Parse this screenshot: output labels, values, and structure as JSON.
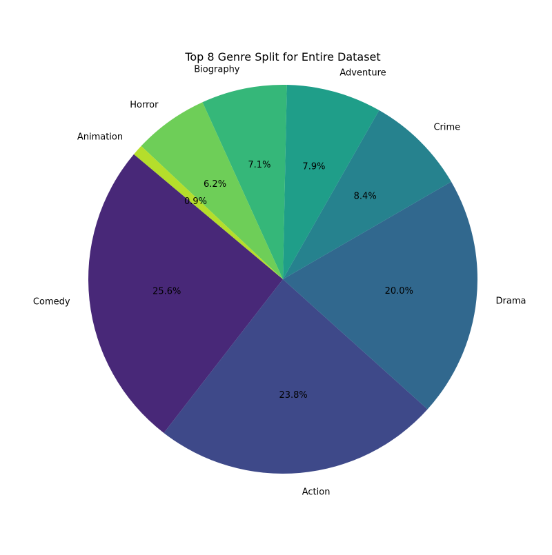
{
  "chart_data": {
    "type": "pie",
    "title": "Top 8 Genre Split for Entire Dataset",
    "start_angle_deg": 140,
    "direction": "counterclockwise",
    "slices": [
      {
        "label": "Comedy",
        "value": 25.6,
        "pct_text": "25.6%",
        "color": "#482878"
      },
      {
        "label": "Action",
        "value": 23.8,
        "pct_text": "23.8%",
        "color": "#3e4989"
      },
      {
        "label": "Drama",
        "value": 20.0,
        "pct_text": "20.0%",
        "color": "#31688e"
      },
      {
        "label": "Crime",
        "value": 8.4,
        "pct_text": "8.4%",
        "color": "#26828e"
      },
      {
        "label": "Adventure",
        "value": 7.9,
        "pct_text": "7.9%",
        "color": "#1f9e89"
      },
      {
        "label": "Biography",
        "value": 7.1,
        "pct_text": "7.1%",
        "color": "#35b779"
      },
      {
        "label": "Horror",
        "value": 6.2,
        "pct_text": "6.2%",
        "color": "#6ece58"
      },
      {
        "label": "Animation",
        "value": 0.9,
        "pct_text": "0.9%",
        "color": "#b5de2b"
      }
    ]
  }
}
